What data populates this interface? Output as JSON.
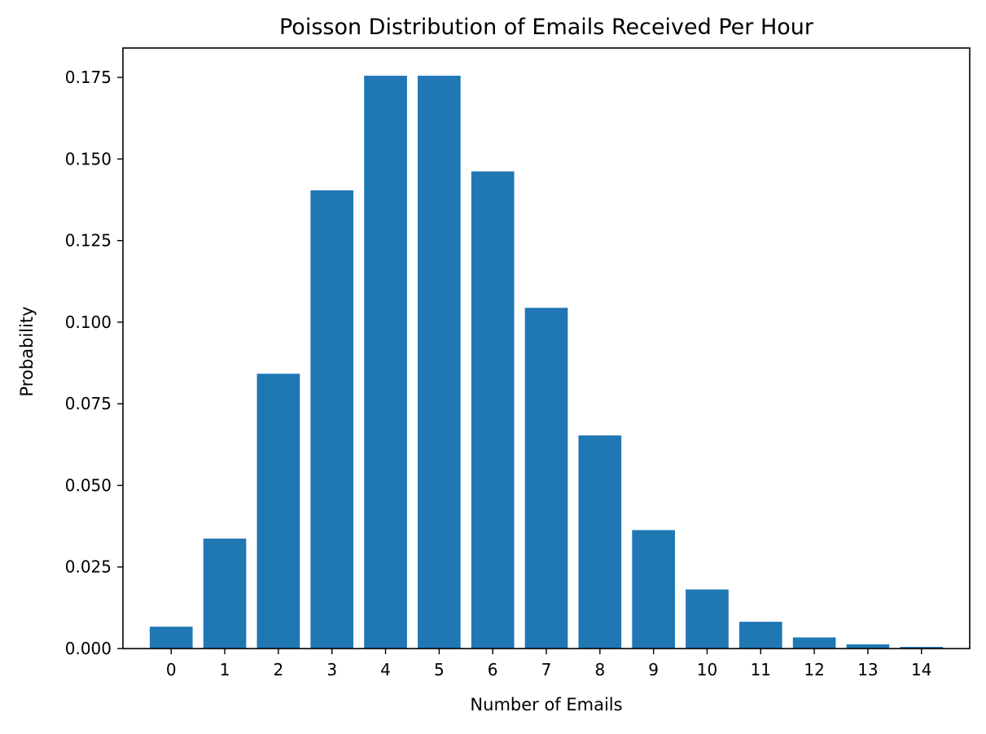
{
  "chart_data": {
    "type": "bar",
    "title": "Poisson Distribution of Emails Received Per Hour",
    "xlabel": "Number of Emails",
    "ylabel": "Probability",
    "categories": [
      "0",
      "1",
      "2",
      "3",
      "4",
      "5",
      "6",
      "7",
      "8",
      "9",
      "10",
      "11",
      "12",
      "13",
      "14"
    ],
    "values": [
      0.0067,
      0.0337,
      0.0842,
      0.1404,
      0.1755,
      0.1755,
      0.1462,
      0.1044,
      0.0653,
      0.0363,
      0.0181,
      0.0082,
      0.0034,
      0.0013,
      0.0005
    ],
    "ylim": [
      0,
      0.184
    ],
    "yticks": [
      "0.000",
      "0.025",
      "0.050",
      "0.075",
      "0.100",
      "0.125",
      "0.150",
      "0.175"
    ],
    "bar_color": "#1f77b4",
    "grid": false,
    "legend": "none"
  }
}
